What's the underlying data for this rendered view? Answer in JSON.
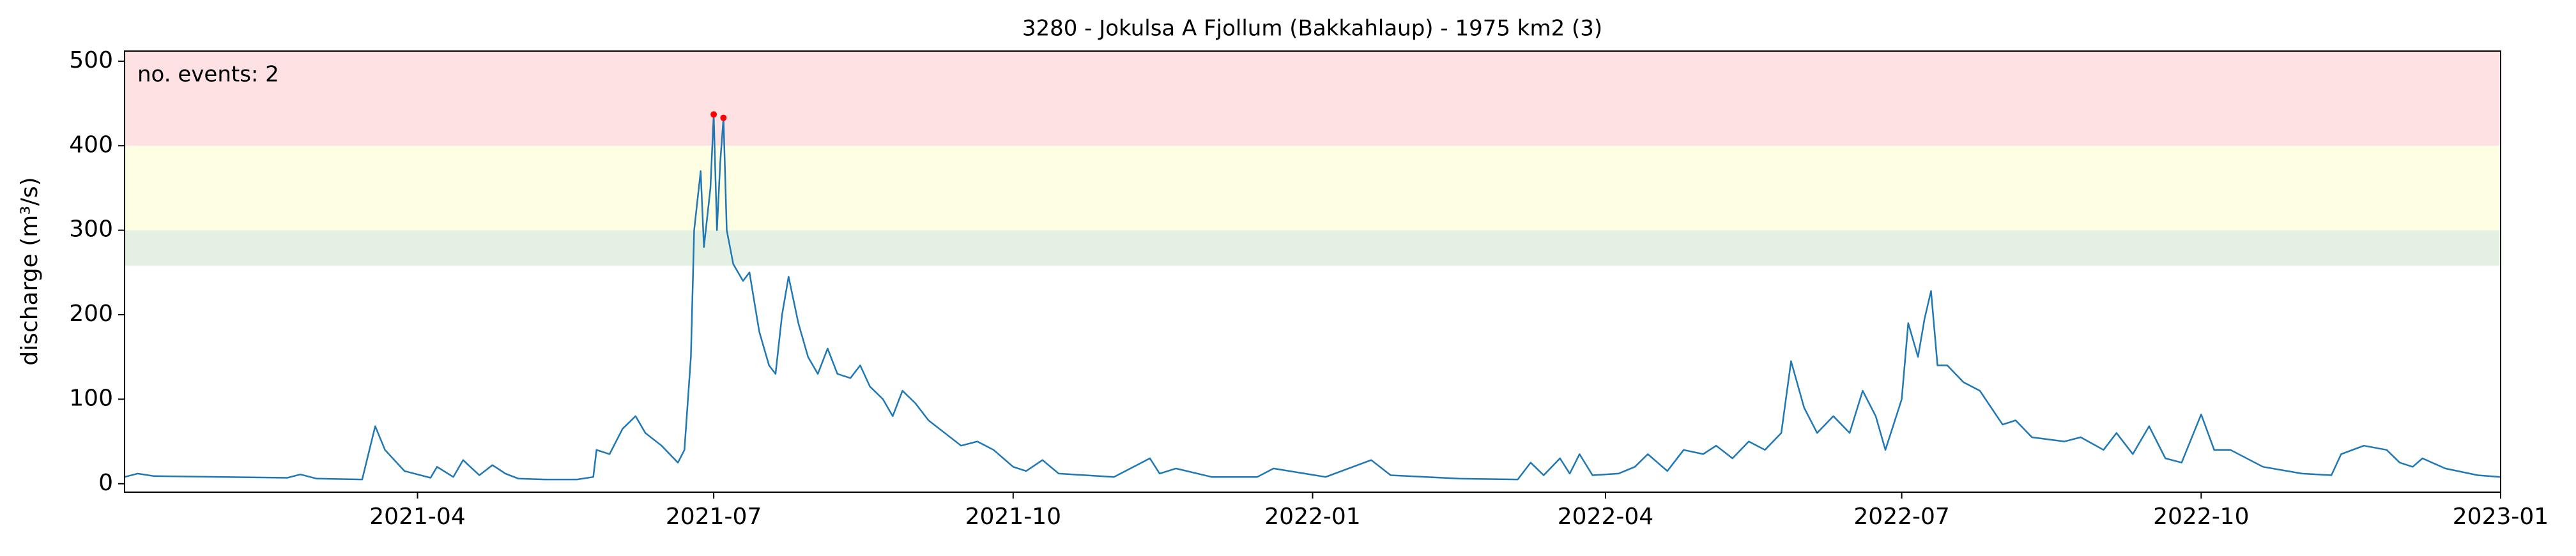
{
  "chart_data": {
    "type": "line",
    "title": "3280 - Jokulsa A Fjollum (Bakkahlaup) - 1975 km2 (3)",
    "y_label": "discharge (m³/s)",
    "annotation": "no. events: 2",
    "xlim": [
      "2021-01",
      "2023-01"
    ],
    "xticks": [
      "2021-04",
      "2021-07",
      "2021-10",
      "2022-01",
      "2022-04",
      "2022-07",
      "2022-10",
      "2023-01"
    ],
    "ylim": [
      -10,
      512
    ],
    "yticks": [
      0,
      100,
      200,
      300,
      400,
      500
    ],
    "bands": [
      {
        "from": 258,
        "to": 300,
        "color": "#e4f0e2"
      },
      {
        "from": 300,
        "to": 400,
        "color": "#fefee2"
      },
      {
        "from": 400,
        "to": 512,
        "color": "#fee1e3"
      }
    ],
    "x": [
      "2021-01-01",
      "2021-01-05",
      "2021-01-10",
      "2021-02-01",
      "2021-02-20",
      "2021-02-24",
      "2021-03-01",
      "2021-03-15",
      "2021-03-19",
      "2021-03-22",
      "2021-03-28",
      "2021-04-05",
      "2021-04-07",
      "2021-04-12",
      "2021-04-15",
      "2021-04-20",
      "2021-04-24",
      "2021-04-28",
      "2021-05-02",
      "2021-05-10",
      "2021-05-20",
      "2021-05-25",
      "2021-05-26",
      "2021-05-30",
      "2021-06-03",
      "2021-06-07",
      "2021-06-10",
      "2021-06-15",
      "2021-06-20",
      "2021-06-22",
      "2021-06-24",
      "2021-06-25",
      "2021-06-27",
      "2021-06-28",
      "2021-06-30",
      "2021-07-01",
      "2021-07-02",
      "2021-07-03",
      "2021-07-04",
      "2021-07-05",
      "2021-07-07",
      "2021-07-10",
      "2021-07-12",
      "2021-07-15",
      "2021-07-18",
      "2021-07-20",
      "2021-07-22",
      "2021-07-24",
      "2021-07-27",
      "2021-07-30",
      "2021-08-02",
      "2021-08-05",
      "2021-08-08",
      "2021-08-12",
      "2021-08-15",
      "2021-08-18",
      "2021-08-22",
      "2021-08-25",
      "2021-08-28",
      "2021-09-01",
      "2021-09-05",
      "2021-09-10",
      "2021-09-15",
      "2021-09-20",
      "2021-09-25",
      "2021-10-01",
      "2021-10-05",
      "2021-10-10",
      "2021-10-15",
      "2021-11-01",
      "2021-11-12",
      "2021-11-15",
      "2021-11-20",
      "2021-12-01",
      "2021-12-15",
      "2021-12-20",
      "2022-01-05",
      "2022-01-19",
      "2022-01-25",
      "2022-02-15",
      "2022-03-05",
      "2022-03-09",
      "2022-03-13",
      "2022-03-18",
      "2022-03-21",
      "2022-03-24",
      "2022-03-28",
      "2022-04-05",
      "2022-04-10",
      "2022-04-14",
      "2022-04-20",
      "2022-04-25",
      "2022-05-01",
      "2022-05-05",
      "2022-05-10",
      "2022-05-15",
      "2022-05-20",
      "2022-05-25",
      "2022-05-28",
      "2022-06-01",
      "2022-06-05",
      "2022-06-10",
      "2022-06-15",
      "2022-06-19",
      "2022-06-23",
      "2022-06-26",
      "2022-07-01",
      "2022-07-03",
      "2022-07-06",
      "2022-07-08",
      "2022-07-10",
      "2022-07-12",
      "2022-07-15",
      "2022-07-20",
      "2022-07-25",
      "2022-08-01",
      "2022-08-05",
      "2022-08-10",
      "2022-08-20",
      "2022-08-25",
      "2022-09-01",
      "2022-09-05",
      "2022-09-10",
      "2022-09-15",
      "2022-09-20",
      "2022-09-25",
      "2022-10-01",
      "2022-10-05",
      "2022-10-10",
      "2022-10-20",
      "2022-11-01",
      "2022-11-10",
      "2022-11-13",
      "2022-11-20",
      "2022-11-27",
      "2022-12-01",
      "2022-12-05",
      "2022-12-08",
      "2022-12-15",
      "2022-12-25",
      "2023-01-01"
    ],
    "series": [
      {
        "color": "#1f77b4",
        "values": [
          8,
          12,
          9,
          8,
          7,
          11,
          6,
          5,
          68,
          40,
          15,
          7,
          20,
          8,
          28,
          10,
          22,
          12,
          6,
          5,
          5,
          8,
          40,
          35,
          65,
          80,
          60,
          45,
          25,
          40,
          150,
          300,
          370,
          280,
          350,
          437,
          300,
          380,
          433,
          300,
          260,
          240,
          250,
          180,
          140,
          130,
          200,
          245,
          190,
          150,
          130,
          160,
          130,
          125,
          140,
          115,
          100,
          80,
          110,
          95,
          75,
          60,
          45,
          50,
          40,
          20,
          15,
          28,
          12,
          8,
          30,
          12,
          18,
          8,
          8,
          18,
          8,
          28,
          10,
          6,
          5,
          25,
          10,
          30,
          12,
          35,
          10,
          12,
          20,
          35,
          15,
          40,
          35,
          45,
          30,
          50,
          40,
          60,
          145,
          90,
          60,
          80,
          60,
          110,
          80,
          40,
          100,
          190,
          150,
          195,
          228,
          140,
          140,
          120,
          110,
          70,
          75,
          55,
          50,
          55,
          40,
          60,
          35,
          68,
          30,
          25,
          82,
          40,
          40,
          20,
          12,
          10,
          35,
          45,
          40,
          25,
          20,
          30,
          18,
          10,
          8
        ]
      }
    ],
    "events": {
      "color": "#ff0000",
      "x": [
        "2021-07-01",
        "2021-07-04"
      ],
      "values": [
        437,
        433
      ]
    }
  }
}
